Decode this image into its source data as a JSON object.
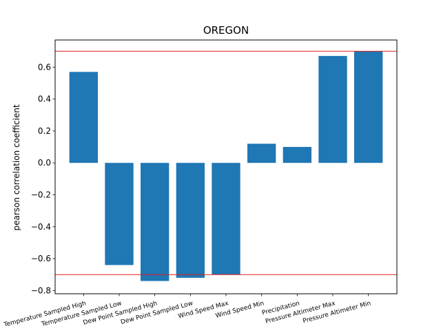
{
  "chart_data": {
    "type": "bar",
    "title": "OREGON",
    "xlabel": "",
    "ylabel": "pearson correlation coefficient",
    "categories": [
      "Temperature Sampled High",
      "Temperature Sampled Low",
      "Dew Point Sampled High",
      "Dew Point Sampled Low",
      "Wind Speed Max",
      "Wind Speed Min",
      "Precipitation",
      "Pressure Altimeter Max",
      "Pressure Altimeter Min"
    ],
    "values": [
      0.57,
      -0.64,
      -0.74,
      -0.72,
      -0.7,
      0.12,
      0.1,
      0.67,
      0.7
    ],
    "ylim": [
      -0.82,
      0.77
    ],
    "yticks": [
      "−0.8",
      "−0.6",
      "−0.4",
      "−0.2",
      "0.0",
      "0.2",
      "0.4",
      "0.6"
    ],
    "ytick_values": [
      -0.8,
      -0.6,
      -0.4,
      -0.2,
      0.0,
      0.2,
      0.4,
      0.6
    ],
    "reference_lines": [
      0.7,
      -0.7
    ],
    "bar_color": "#1f77b4",
    "reference_line_color": "#e31a1c",
    "grid": false
  }
}
